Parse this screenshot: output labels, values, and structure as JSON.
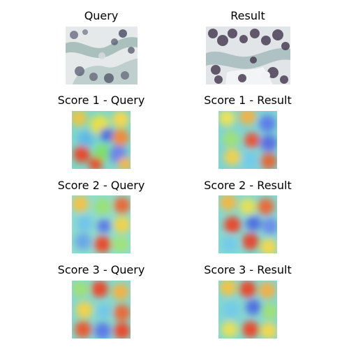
{
  "figure": {
    "row0": {
      "left_title": "Query",
      "right_title": "Result"
    },
    "row1": {
      "left_title": "Score 1 - Query",
      "right_title": "Score 1 - Result"
    },
    "row2": {
      "left_title": "Score 2 - Query",
      "right_title": "Score 2 - Result"
    },
    "row3": {
      "left_title": "Score 3 - Query",
      "right_title": "Score 3 - Result"
    }
  }
}
